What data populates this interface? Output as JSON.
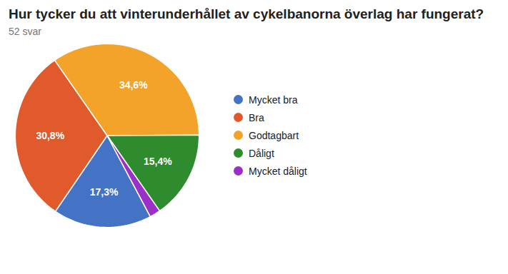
{
  "chart_data": {
    "type": "pie",
    "title": "Hur tycker du att vinterunderhållet av cykelbanorna överlag har fungerat?",
    "subtitle": "52 svar",
    "categories": [
      "Mycket bra",
      "Bra",
      "Godtagbart",
      "Dåligt",
      "Mycket dåligt"
    ],
    "values": [
      17.3,
      30.8,
      34.6,
      15.4,
      1.9
    ],
    "value_labels": [
      "17,3%",
      "30,8%",
      "34,6%",
      "15,4%",
      null
    ],
    "colors": [
      "#4472c4",
      "#e05a2b",
      "#f4a32a",
      "#2e8b2e",
      "#9b30c8"
    ],
    "data_labels": true,
    "legend": "right"
  }
}
